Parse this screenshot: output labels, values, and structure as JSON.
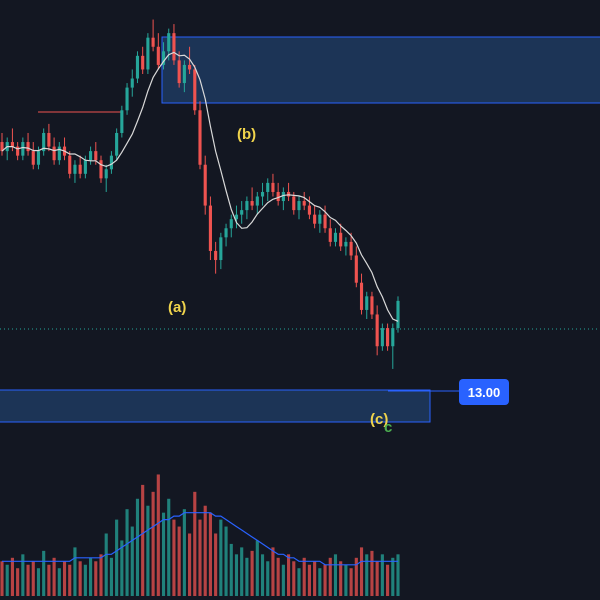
{
  "colors": {
    "background": "#131722",
    "up_candle": "#26a69a",
    "down_candle": "#ef5350",
    "ma_line": "#d9d9d9",
    "volume_ma": "#2962ff",
    "zone_fill": "#1e3a5f",
    "zone_border": "#2962ff",
    "wave_label": "#f0d44c",
    "marker_green": "#4caf50",
    "price_tag_bg": "#2962ff",
    "price_tag_text": "#ffffff",
    "dotted_price_line": "#26a69a",
    "ref_line": "#ef5350"
  },
  "annotations": {
    "wave_a": "(a)",
    "wave_b": "(b)",
    "wave_c": "(c)",
    "marker_c": "c",
    "price_tag": "13.00"
  },
  "chart_data": {
    "type": "candlestick",
    "title": "",
    "price_label": 13.0,
    "ohlc": [
      [
        15.2,
        15.4,
        14.9,
        15.0
      ],
      [
        15.0,
        15.3,
        14.8,
        15.2
      ],
      [
        15.2,
        15.5,
        15.0,
        15.1
      ],
      [
        15.1,
        15.2,
        14.8,
        14.9
      ],
      [
        14.9,
        15.3,
        14.8,
        15.2
      ],
      [
        15.2,
        15.4,
        14.9,
        15.0
      ],
      [
        15.0,
        15.2,
        14.6,
        14.7
      ],
      [
        14.7,
        15.1,
        14.6,
        15.0
      ],
      [
        15.0,
        15.5,
        14.9,
        15.4
      ],
      [
        15.4,
        15.6,
        15.0,
        15.1
      ],
      [
        15.1,
        15.3,
        14.7,
        14.8
      ],
      [
        14.8,
        15.2,
        14.7,
        15.1
      ],
      [
        15.1,
        15.3,
        14.8,
        14.9
      ],
      [
        14.9,
        15.0,
        14.4,
        14.5
      ],
      [
        14.5,
        14.8,
        14.3,
        14.7
      ],
      [
        14.7,
        14.9,
        14.4,
        14.5
      ],
      [
        14.5,
        14.9,
        14.4,
        14.8
      ],
      [
        14.8,
        15.1,
        14.7,
        15.0
      ],
      [
        15.0,
        15.2,
        14.7,
        14.8
      ],
      [
        14.8,
        14.9,
        14.3,
        14.4
      ],
      [
        14.4,
        14.7,
        14.1,
        14.6
      ],
      [
        14.6,
        15.0,
        14.5,
        14.9
      ],
      [
        14.9,
        15.5,
        14.8,
        15.4
      ],
      [
        15.4,
        16.0,
        15.3,
        15.9
      ],
      [
        15.9,
        16.5,
        15.8,
        16.4
      ],
      [
        16.4,
        16.8,
        16.2,
        16.6
      ],
      [
        16.6,
        17.2,
        16.5,
        17.1
      ],
      [
        17.1,
        17.3,
        16.7,
        16.8
      ],
      [
        16.8,
        17.6,
        16.7,
        17.5
      ],
      [
        17.5,
        17.9,
        17.2,
        17.3
      ],
      [
        17.3,
        17.6,
        16.8,
        16.9
      ],
      [
        16.9,
        17.4,
        16.8,
        17.2
      ],
      [
        17.2,
        17.7,
        17.0,
        17.6
      ],
      [
        17.6,
        17.8,
        16.9,
        17.0
      ],
      [
        17.0,
        17.2,
        16.4,
        16.5
      ],
      [
        16.5,
        17.0,
        16.3,
        16.9
      ],
      [
        16.9,
        17.3,
        16.7,
        16.8
      ],
      [
        16.8,
        16.9,
        15.8,
        15.9
      ],
      [
        15.9,
        16.1,
        14.6,
        14.7
      ],
      [
        14.7,
        14.9,
        13.6,
        13.8
      ],
      [
        13.8,
        14.0,
        12.6,
        12.8
      ],
      [
        12.8,
        13.0,
        12.3,
        12.6
      ],
      [
        12.6,
        13.2,
        12.4,
        13.1
      ],
      [
        13.1,
        13.4,
        12.9,
        13.3
      ],
      [
        13.3,
        13.6,
        13.1,
        13.5
      ],
      [
        13.5,
        13.8,
        13.3,
        13.6
      ],
      [
        13.6,
        13.9,
        13.4,
        13.7
      ],
      [
        13.7,
        14.0,
        13.5,
        13.9
      ],
      [
        13.9,
        14.2,
        13.7,
        13.8
      ],
      [
        13.8,
        14.1,
        13.6,
        14.0
      ],
      [
        14.0,
        14.3,
        13.8,
        14.1
      ],
      [
        14.1,
        14.4,
        13.9,
        14.3
      ],
      [
        14.3,
        14.5,
        14.0,
        14.1
      ],
      [
        14.1,
        14.3,
        13.8,
        13.9
      ],
      [
        13.9,
        14.2,
        13.7,
        14.1
      ],
      [
        14.1,
        14.3,
        13.9,
        14.0
      ],
      [
        14.0,
        14.1,
        13.6,
        13.7
      ],
      [
        13.7,
        14.0,
        13.5,
        13.9
      ],
      [
        13.9,
        14.1,
        13.7,
        13.8
      ],
      [
        13.8,
        14.0,
        13.5,
        13.6
      ],
      [
        13.6,
        13.8,
        13.3,
        13.4
      ],
      [
        13.4,
        13.7,
        13.2,
        13.6
      ],
      [
        13.6,
        13.8,
        13.2,
        13.3
      ],
      [
        13.3,
        13.5,
        12.9,
        13.0
      ],
      [
        13.0,
        13.3,
        12.9,
        13.2
      ],
      [
        13.2,
        13.4,
        12.8,
        12.9
      ],
      [
        12.9,
        13.1,
        12.7,
        13.0
      ],
      [
        13.0,
        13.2,
        12.6,
        12.7
      ],
      [
        12.7,
        12.9,
        12.0,
        12.1
      ],
      [
        12.1,
        12.3,
        11.4,
        11.5
      ],
      [
        11.5,
        11.9,
        11.3,
        11.8
      ],
      [
        11.8,
        11.9,
        11.3,
        11.4
      ],
      [
        11.4,
        11.6,
        10.5,
        10.7
      ],
      [
        10.7,
        11.2,
        10.6,
        11.1
      ],
      [
        11.1,
        11.2,
        10.6,
        10.7
      ],
      [
        10.7,
        11.2,
        10.2,
        11.1
      ],
      [
        11.1,
        11.8,
        11.0,
        11.7
      ]
    ],
    "volume": [
      10,
      9,
      11,
      8,
      12,
      9,
      10,
      8,
      13,
      9,
      11,
      8,
      10,
      9,
      14,
      10,
      9,
      11,
      10,
      12,
      18,
      11,
      22,
      16,
      25,
      20,
      28,
      32,
      26,
      30,
      35,
      24,
      28,
      22,
      20,
      25,
      18,
      30,
      22,
      26,
      24,
      18,
      22,
      20,
      15,
      12,
      14,
      11,
      13,
      16,
      12,
      10,
      14,
      11,
      9,
      12,
      10,
      8,
      11,
      9,
      10,
      8,
      9,
      11,
      12,
      10,
      9,
      8,
      11,
      14,
      12,
      13,
      10,
      12,
      9,
      11,
      12
    ],
    "volume_ma": [
      10,
      10,
      10,
      10,
      10,
      10,
      10,
      10,
      10,
      10,
      10,
      10,
      10,
      10,
      11,
      11,
      11,
      11,
      11,
      11,
      12,
      12,
      13,
      14,
      15,
      16,
      17,
      18,
      19,
      20,
      21,
      22,
      22,
      23,
      23,
      24,
      24,
      24,
      24,
      24,
      24,
      23,
      23,
      22,
      21,
      20,
      19,
      18,
      17,
      16,
      15,
      14,
      13,
      12,
      12,
      11,
      11,
      10,
      10,
      10,
      10,
      10,
      9,
      9,
      9,
      9,
      9,
      9,
      9,
      10,
      10,
      10,
      10,
      10,
      10,
      10,
      10
    ]
  }
}
